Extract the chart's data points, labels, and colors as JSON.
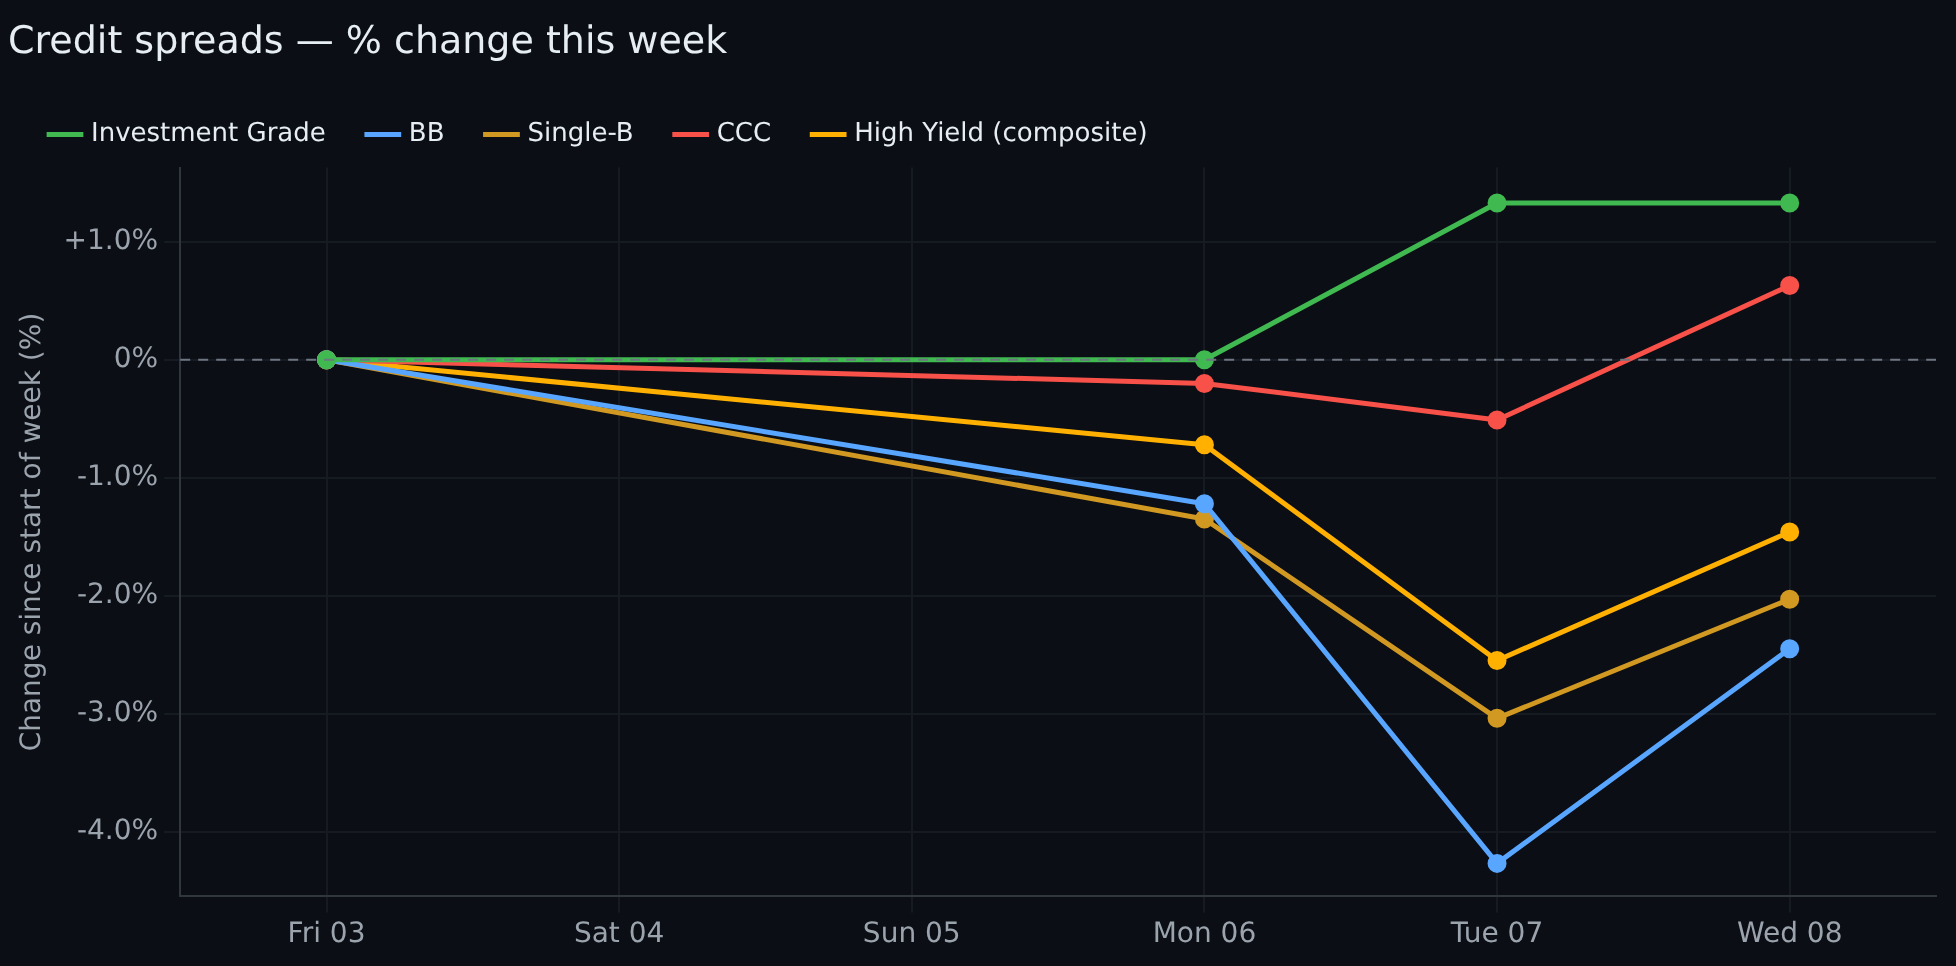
{
  "chart_data": {
    "type": "line",
    "title": "Credit spreads — % change this week",
    "ylabel": "Change since start of week (%)",
    "categories": [
      "Fri 03",
      "Sat 04",
      "Sun 05",
      "Mon 06",
      "Tue 07",
      "Wed 08"
    ],
    "series": [
      {
        "name": "Investment Grade",
        "color": "#3fb950",
        "values": [
          0,
          null,
          null,
          0,
          1.33,
          1.33
        ]
      },
      {
        "name": "BB",
        "color": "#58a6ff",
        "values": [
          0,
          null,
          null,
          -1.22,
          -4.27,
          -2.45
        ]
      },
      {
        "name": "Single-B",
        "color": "#d29922",
        "values": [
          0,
          null,
          null,
          -1.35,
          -3.04,
          -2.03
        ]
      },
      {
        "name": "CCC",
        "color": "#f85149",
        "values": [
          0,
          null,
          null,
          -0.2,
          -0.51,
          0.63
        ]
      },
      {
        "name": "High Yield (composite)",
        "color": "#ffb000",
        "values": [
          0,
          null,
          null,
          -0.72,
          -2.55,
          -1.46
        ]
      }
    ],
    "ylim": [
      -4.55,
      1.63
    ],
    "yticks": [
      {
        "value": -4,
        "label": "-4.0%"
      },
      {
        "value": -3,
        "label": "-3.0%"
      },
      {
        "value": -2,
        "label": "-2.0%"
      },
      {
        "value": -1,
        "label": "-1.0%"
      },
      {
        "value": 0,
        "label": "0%"
      },
      {
        "value": 1,
        "label": "+1.0%"
      }
    ],
    "ref_lines": [
      {
        "axis": "y",
        "value": 0,
        "line_style": "dashed",
        "color": "#6e7681"
      }
    ],
    "grid": true,
    "legend": "top left",
    "marker": "circle",
    "line_style": "solid"
  }
}
